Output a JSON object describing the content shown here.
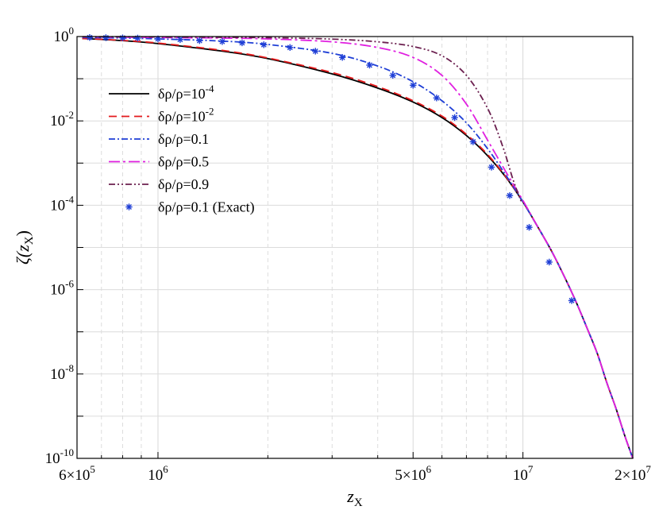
{
  "chart_data": {
    "type": "line",
    "x_scale": "log",
    "y_scale": "log",
    "xlim": [
      600000,
      20000000
    ],
    "ylim": [
      1e-10,
      1
    ],
    "grid": true,
    "legend_placement": "upper-left",
    "xlabel": {
      "base": "z",
      "sub": "X"
    },
    "ylabel": {
      "base": "ζ(z",
      "sub": "X",
      "close": ")"
    },
    "x_ticks": [
      {
        "value": 600000,
        "base": "6×10",
        "exp": "5"
      },
      {
        "value": 1000000,
        "base": "10",
        "exp": "6"
      },
      {
        "value": 5000000,
        "base": "5×10",
        "exp": "6"
      },
      {
        "value": 10000000,
        "base": "10",
        "exp": "7"
      },
      {
        "value": 20000000,
        "base": "2×10",
        "exp": "7"
      }
    ],
    "y_ticks": [
      {
        "value": 1,
        "base": "10",
        "exp": "0"
      },
      {
        "value": 0.01,
        "base": "10",
        "exp": "-2"
      },
      {
        "value": 0.0001,
        "base": "10",
        "exp": "-4"
      },
      {
        "value": 1e-06,
        "base": "10",
        "exp": "-6"
      },
      {
        "value": 1e-08,
        "base": "10",
        "exp": "-8"
      },
      {
        "value": 1e-10,
        "base": "10",
        "exp": "-10"
      }
    ],
    "series": [
      {
        "name": {
          "base": "δρ/ρ=10",
          "exp": "-4"
        },
        "color": "#000000",
        "dash": "solid",
        "marker": "none",
        "points": [
          [
            620000,
            0.9
          ],
          [
            800000,
            0.8
          ],
          [
            1000000,
            0.68
          ],
          [
            1500000,
            0.45
          ],
          [
            2000000,
            0.3
          ],
          [
            3000000,
            0.13
          ],
          [
            4000000,
            0.06
          ],
          [
            5000000,
            0.028
          ],
          [
            6000000,
            0.012
          ],
          [
            7000000,
            0.0045
          ],
          [
            8000000,
            0.0015
          ],
          [
            9000000,
            0.00045
          ],
          [
            10000000,
            0.00012
          ],
          [
            11000000,
            3e-05
          ],
          [
            12000000,
            8e-06
          ],
          [
            13000000,
            2e-06
          ],
          [
            14000000,
            5e-07
          ],
          [
            15000000,
            1.2e-07
          ],
          [
            16000000,
            3e-08
          ],
          [
            17000000,
            6e-09
          ],
          [
            18000000,
            1.5e-09
          ],
          [
            19000000,
            3.5e-10
          ],
          [
            20000000,
            1e-10
          ]
        ]
      },
      {
        "name": {
          "base": "δρ/ρ=10",
          "exp": "-2"
        },
        "color": "#e41a1c",
        "dash": "10,6",
        "marker": "none",
        "points": [
          [
            620000,
            0.9
          ],
          [
            800000,
            0.81
          ],
          [
            1000000,
            0.7
          ],
          [
            1500000,
            0.47
          ],
          [
            2000000,
            0.31
          ],
          [
            3000000,
            0.14
          ],
          [
            4000000,
            0.065
          ],
          [
            5000000,
            0.03
          ],
          [
            6000000,
            0.013
          ],
          [
            7000000,
            0.0048
          ],
          [
            8000000,
            0.0016
          ],
          [
            9000000,
            0.00046
          ],
          [
            10000000,
            0.00012
          ],
          [
            11000000,
            3e-05
          ],
          [
            12000000,
            8e-06
          ],
          [
            13000000,
            2e-06
          ],
          [
            14000000,
            5e-07
          ],
          [
            15000000,
            1.2e-07
          ],
          [
            16000000,
            3e-08
          ],
          [
            17000000,
            6e-09
          ],
          [
            18000000,
            1.5e-09
          ],
          [
            19000000,
            3.5e-10
          ],
          [
            20000000,
            1e-10
          ]
        ]
      },
      {
        "name": {
          "base": "δρ/ρ=0.1",
          "exp": ""
        },
        "color": "#1f3fd6",
        "dash": "8,3,2,3",
        "marker": "none",
        "points": [
          [
            620000,
            0.95
          ],
          [
            800000,
            0.92
          ],
          [
            1000000,
            0.88
          ],
          [
            1500000,
            0.78
          ],
          [
            2000000,
            0.65
          ],
          [
            3000000,
            0.4
          ],
          [
            4000000,
            0.2
          ],
          [
            5000000,
            0.085
          ],
          [
            6000000,
            0.03
          ],
          [
            7000000,
            0.009
          ],
          [
            8000000,
            0.0022
          ],
          [
            9000000,
            0.0005
          ],
          [
            10000000,
            0.00012
          ],
          [
            11000000,
            3e-05
          ],
          [
            12000000,
            8e-06
          ],
          [
            13000000,
            2e-06
          ],
          [
            14000000,
            5e-07
          ],
          [
            15000000,
            1.2e-07
          ],
          [
            16000000,
            3e-08
          ],
          [
            17000000,
            6e-09
          ],
          [
            18000000,
            1.5e-09
          ],
          [
            19000000,
            3.5e-10
          ],
          [
            20000000,
            1e-10
          ]
        ]
      },
      {
        "name": {
          "base": "δρ/ρ=0.5",
          "exp": ""
        },
        "color": "#e020e0",
        "dash": "14,4,3,4",
        "marker": "none",
        "points": [
          [
            620000,
            0.98
          ],
          [
            1000000,
            0.95
          ],
          [
            1500000,
            0.92
          ],
          [
            2000000,
            0.88
          ],
          [
            3000000,
            0.75
          ],
          [
            4000000,
            0.55
          ],
          [
            5000000,
            0.32
          ],
          [
            6000000,
            0.12
          ],
          [
            7000000,
            0.025
          ],
          [
            8000000,
            0.0035
          ],
          [
            9000000,
            0.0006
          ],
          [
            10000000,
            0.00013
          ],
          [
            11000000,
            3e-05
          ],
          [
            12000000,
            8e-06
          ],
          [
            13000000,
            2e-06
          ],
          [
            14000000,
            5e-07
          ],
          [
            15000000,
            1.2e-07
          ],
          [
            16000000,
            3e-08
          ],
          [
            17000000,
            6e-09
          ],
          [
            18000000,
            1.5e-09
          ],
          [
            19000000,
            3.5e-10
          ],
          [
            20000000,
            1e-10
          ]
        ]
      },
      {
        "name": {
          "base": "δρ/ρ=0.9",
          "exp": ""
        },
        "color": "#6b1f4f",
        "dash": "8,3,2,3,2,3",
        "marker": "none",
        "points": [
          [
            620000,
            0.99
          ],
          [
            1000000,
            0.98
          ],
          [
            2000000,
            0.94
          ],
          [
            3000000,
            0.87
          ],
          [
            4000000,
            0.75
          ],
          [
            5000000,
            0.58
          ],
          [
            6000000,
            0.35
          ],
          [
            7000000,
            0.12
          ],
          [
            8000000,
            0.02
          ],
          [
            8800000,
            0.0025
          ],
          [
            9400000,
            0.0004
          ],
          [
            9900000,
            0.00012
          ]
        ]
      },
      {
        "name": {
          "base": "δρ/ρ=0.1 (Exact)",
          "exp": ""
        },
        "color": "#1f3fd6",
        "dash": "none",
        "marker": "asterisk",
        "points": [
          [
            650000,
            0.95
          ],
          [
            720000,
            0.94
          ],
          [
            800000,
            0.93
          ],
          [
            880000,
            0.92
          ],
          [
            1000000,
            0.88
          ],
          [
            1150000,
            0.85
          ],
          [
            1300000,
            0.8
          ],
          [
            1500000,
            0.76
          ],
          [
            1700000,
            0.71
          ],
          [
            1950000,
            0.64
          ],
          [
            2300000,
            0.55
          ],
          [
            2700000,
            0.45
          ],
          [
            3200000,
            0.32
          ],
          [
            3800000,
            0.21
          ],
          [
            4400000,
            0.12
          ],
          [
            5000000,
            0.07
          ],
          [
            5800000,
            0.035
          ],
          [
            6500000,
            0.012
          ],
          [
            7300000,
            0.0032
          ],
          [
            8200000,
            0.0008
          ],
          [
            9200000,
            0.00017
          ],
          [
            10400000,
            3e-05
          ],
          [
            11800000,
            4.5e-06
          ],
          [
            13600000,
            5.5e-07
          ]
        ]
      }
    ]
  }
}
